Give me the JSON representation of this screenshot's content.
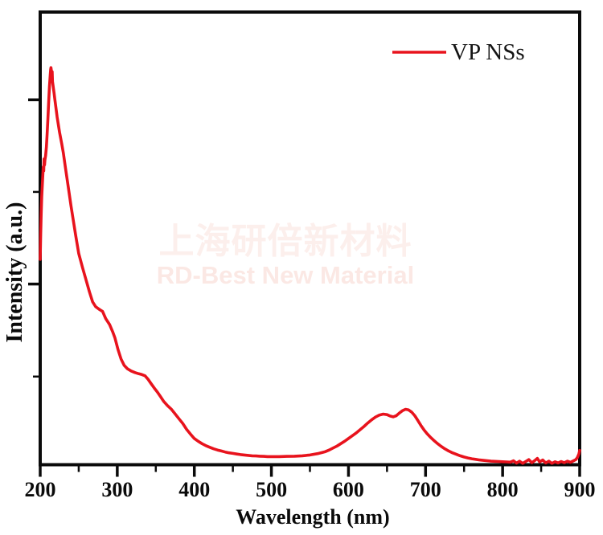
{
  "figure": {
    "background": "#ffffff",
    "frame_color": "#0a0a0a"
  },
  "legend": {
    "label": "VP NSs",
    "line_color": "#e8131d",
    "position": "top-right"
  },
  "watermark": {
    "line1": "上海研倍新材料",
    "line2": "RD-Best New Material",
    "line1_color": "#fcefec",
    "line2_color": "#fbe8e4"
  },
  "chart_data": {
    "type": "line",
    "title": "",
    "xlabel": "Wavelength (nm)",
    "ylabel": "Intensity (a.u.)",
    "xlim": [
      200,
      900
    ],
    "ylim": [
      0,
      1.14
    ],
    "grid": false,
    "axis_color": "#0a0a0a",
    "line_color": "#e8131d",
    "x_ticks_major": [
      200,
      300,
      400,
      500,
      600,
      700,
      800,
      900
    ],
    "x_ticks_minor": [
      250,
      350,
      450,
      550,
      650,
      750,
      850
    ],
    "y_ticks_major": [
      0.455,
      0.919
    ],
    "y_ticks_minor": [
      0.222,
      0.687
    ],
    "series": [
      {
        "name": "VP NSs",
        "x": [
          200,
          200.6,
          201.2,
          202,
          203,
          204,
          204.6,
          205,
          205.6,
          206.2,
          207,
          208,
          209,
          210,
          211,
          212,
          213,
          213.6,
          214,
          215,
          215.5,
          216,
          217,
          218,
          219,
          220,
          222,
          225,
          228,
          230,
          233,
          236,
          240,
          243,
          246,
          250,
          255,
          260,
          264,
          268,
          272,
          276,
          281,
          285,
          290,
          294,
          297,
          301,
          305,
          309,
          313,
          318,
          323,
          328,
          332,
          336,
          340,
          344,
          348,
          352,
          356,
          360,
          365,
          370,
          375,
          380,
          385,
          390,
          395,
          400,
          405,
          410,
          415,
          420,
          425,
          430,
          435,
          440,
          445,
          450,
          455,
          460,
          465,
          470,
          475,
          480,
          485,
          490,
          495,
          500,
          510,
          520,
          530,
          540,
          550,
          560,
          570,
          575,
          580,
          585,
          590,
          595,
          600,
          605,
          610,
          615,
          620,
          625,
          630,
          635,
          640,
          645,
          650,
          654,
          658,
          662,
          666,
          670,
          674,
          678,
          682,
          686,
          690,
          694,
          698,
          702,
          706,
          710,
          715,
          720,
          725,
          730,
          735,
          740,
          745,
          750,
          755,
          760,
          765,
          770,
          775,
          780,
          785,
          790,
          795,
          800,
          805,
          810,
          814,
          818,
          822,
          826,
          830,
          834,
          838,
          842,
          845,
          848,
          852,
          856,
          860,
          864,
          868,
          872,
          876,
          880,
          884,
          888,
          892,
          895,
          897,
          899,
          900
        ],
        "y": [
          0.517,
          0.58,
          0.63,
          0.675,
          0.715,
          0.75,
          0.74,
          0.77,
          0.755,
          0.768,
          0.778,
          0.8,
          0.832,
          0.872,
          0.912,
          0.952,
          0.982,
          0.995,
          1.0,
          0.985,
          0.99,
          0.965,
          0.95,
          0.935,
          0.92,
          0.905,
          0.875,
          0.838,
          0.808,
          0.785,
          0.745,
          0.705,
          0.652,
          0.615,
          0.578,
          0.532,
          0.496,
          0.462,
          0.435,
          0.41,
          0.398,
          0.392,
          0.386,
          0.368,
          0.353,
          0.335,
          0.319,
          0.29,
          0.266,
          0.25,
          0.242,
          0.236,
          0.232,
          0.229,
          0.227,
          0.224,
          0.215,
          0.204,
          0.193,
          0.183,
          0.172,
          0.16,
          0.149,
          0.14,
          0.128,
          0.116,
          0.104,
          0.089,
          0.077,
          0.066,
          0.059,
          0.053,
          0.048,
          0.044,
          0.04,
          0.037,
          0.0345,
          0.032,
          0.03,
          0.0285,
          0.027,
          0.0255,
          0.0245,
          0.0235,
          0.0225,
          0.022,
          0.0215,
          0.021,
          0.0205,
          0.0205,
          0.0205,
          0.021,
          0.0215,
          0.0225,
          0.0245,
          0.028,
          0.033,
          0.037,
          0.042,
          0.047,
          0.053,
          0.059,
          0.066,
          0.073,
          0.08,
          0.088,
          0.096,
          0.105,
          0.113,
          0.12,
          0.125,
          0.1275,
          0.126,
          0.1225,
          0.1205,
          0.1235,
          0.13,
          0.136,
          0.1395,
          0.138,
          0.1325,
          0.1235,
          0.1115,
          0.099,
          0.0875,
          0.078,
          0.07,
          0.0625,
          0.054,
          0.0465,
          0.04,
          0.0345,
          0.03,
          0.026,
          0.0225,
          0.0195,
          0.017,
          0.015,
          0.0135,
          0.012,
          0.011,
          0.01,
          0.009,
          0.0085,
          0.008,
          0.0075,
          0.007,
          0.0065,
          0.01,
          0.004,
          0.009,
          0.0035,
          0.008,
          0.013,
          0.005,
          0.011,
          0.016,
          0.007,
          0.012,
          0.0045,
          0.009,
          0.0035,
          0.0075,
          0.0045,
          0.008,
          0.005,
          0.009,
          0.006,
          0.01,
          0.013,
          0.018,
          0.027,
          0.036
        ]
      }
    ]
  }
}
